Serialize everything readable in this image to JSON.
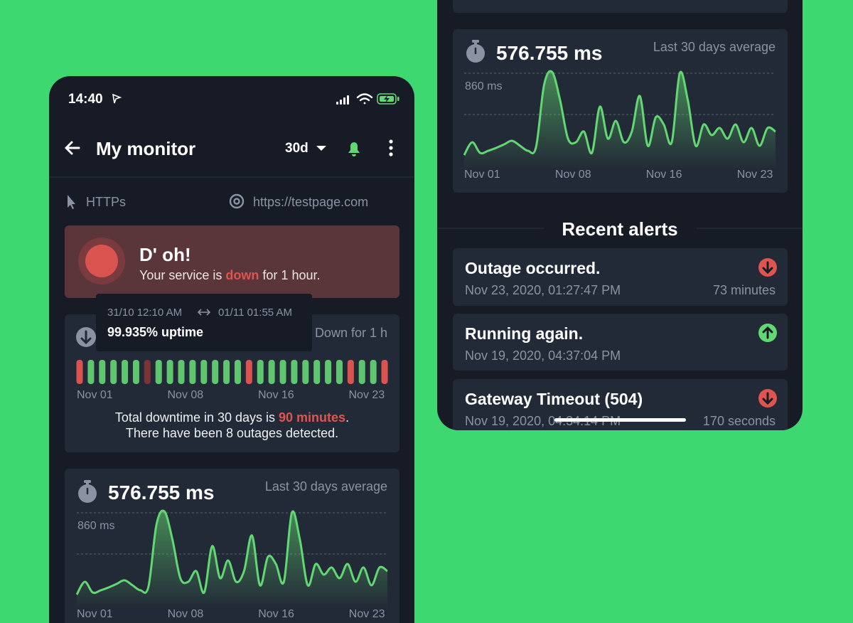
{
  "left_screen": {
    "status_bar": {
      "time": "14:40"
    },
    "header": {
      "title": "My monitor",
      "period": "30d"
    },
    "monitor": {
      "protocol": "HTTPs",
      "url": "https://testpage.com"
    },
    "status_card": {
      "title": "D' oh!",
      "text_before": "Your service is",
      "text_highlight": "down",
      "text_after": "for 1 hour."
    },
    "uptime_card": {
      "summary_right": "Down for 1 h",
      "bars": [
        "down",
        "up",
        "up",
        "up",
        "up",
        "up",
        "partial",
        "up",
        "up",
        "up",
        "up",
        "up",
        "up",
        "up",
        "up",
        "down",
        "up",
        "up",
        "up",
        "up",
        "up",
        "up",
        "up",
        "up",
        "down",
        "up",
        "up",
        "down"
      ],
      "bar_colors": {
        "up": "#5fc56e",
        "down": "#d9534f",
        "partial": "#7a3438"
      },
      "x_labels": [
        "Nov 01",
        "Nov 08",
        "Nov 16",
        "Nov 23"
      ],
      "downtime_before": "Total downtime in 30 days is",
      "downtime_highlight": "90 minutes",
      "downtime_after": ".",
      "outages": "There have been 8 outages detected."
    },
    "tooltip": {
      "from": "31/10 12:10 AM",
      "to": "01/11 01:55 AM",
      "uptime": "99.935% uptime"
    }
  },
  "response_time": {
    "average": "576.755 ms",
    "caption": "Last 30 days average"
  },
  "chart_data": {
    "type": "line",
    "color": "#62d872",
    "values": [
      93,
      213,
      113,
      133,
      160,
      193,
      227,
      180,
      133,
      167,
      747,
      873,
      613,
      247,
      213,
      313,
      113,
      547,
      247,
      413,
      213,
      313,
      647,
      180,
      447,
      380,
      213,
      860,
      613,
      180,
      380,
      280,
      347,
      247,
      380,
      213,
      347,
      180,
      347,
      313
    ],
    "x_labels": [
      "Nov 01",
      "Nov 08",
      "Nov 16",
      "Nov 23"
    ],
    "ylim": [
      0,
      860
    ],
    "yticks": [
      {
        "value": 860,
        "label": "860 ms"
      }
    ]
  },
  "right_screen": {
    "alerts_title": "Recent alerts",
    "alerts": [
      {
        "title": "Outage occurred.",
        "time": "Nov 23, 2020, 01:27:47 PM",
        "duration": "73 minutes",
        "status": "down"
      },
      {
        "title": "Running again.",
        "time": "Nov 19, 2020, 04:37:04 PM",
        "duration": null,
        "status": "up"
      },
      {
        "title": "Gateway Timeout (504)",
        "time": "Nov 19, 2020, 04:34:14 PM",
        "duration": "170 seconds",
        "status": "down"
      }
    ]
  }
}
